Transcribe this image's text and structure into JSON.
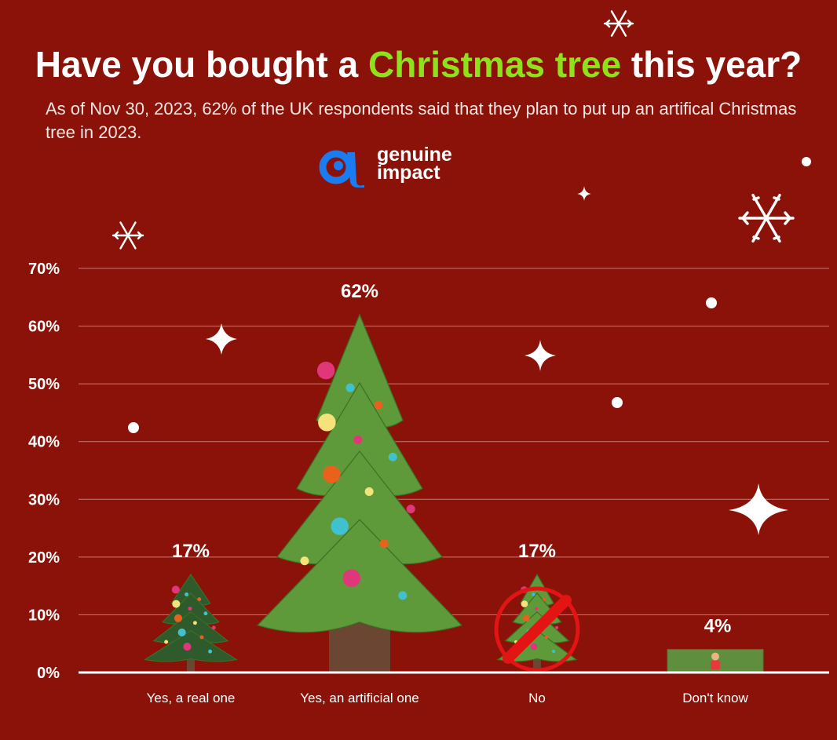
{
  "header": {
    "title_pre": "Have you bought a ",
    "title_highlight": "Christmas tree",
    "title_post": " this year?",
    "subtitle": "As of Nov 30, 2023, 62% of the UK respondents said that they plan to put up an artifical Christmas tree in 2023."
  },
  "logo": {
    "line1": "genuine",
    "line2": "impact"
  },
  "colors": {
    "background": "#8a1209",
    "highlight": "#8fe21b",
    "brand_blue": "#1b7bf0",
    "tree_green": "#5f9a3a",
    "trunk": "#6b4632",
    "no_sign": "#e31414",
    "dont_know_bar": "#5f8f3e"
  },
  "chart_data": {
    "type": "bar",
    "title": "Have you bought a Christmas tree this year?",
    "categories": [
      "Yes, a real one",
      "Yes, an artificial one",
      "No",
      "Don't know"
    ],
    "values": [
      17,
      62,
      17,
      4
    ],
    "value_labels": [
      "17%",
      "62%",
      "17%",
      "4%"
    ],
    "ylim": [
      0,
      70
    ],
    "yticks": [
      0,
      10,
      20,
      30,
      40,
      50,
      60,
      70
    ],
    "ytick_labels": [
      "0%",
      "10%",
      "20%",
      "30%",
      "40%",
      "50%",
      "60%",
      "70%"
    ],
    "grid": true,
    "xlabel": "",
    "ylabel": ""
  }
}
